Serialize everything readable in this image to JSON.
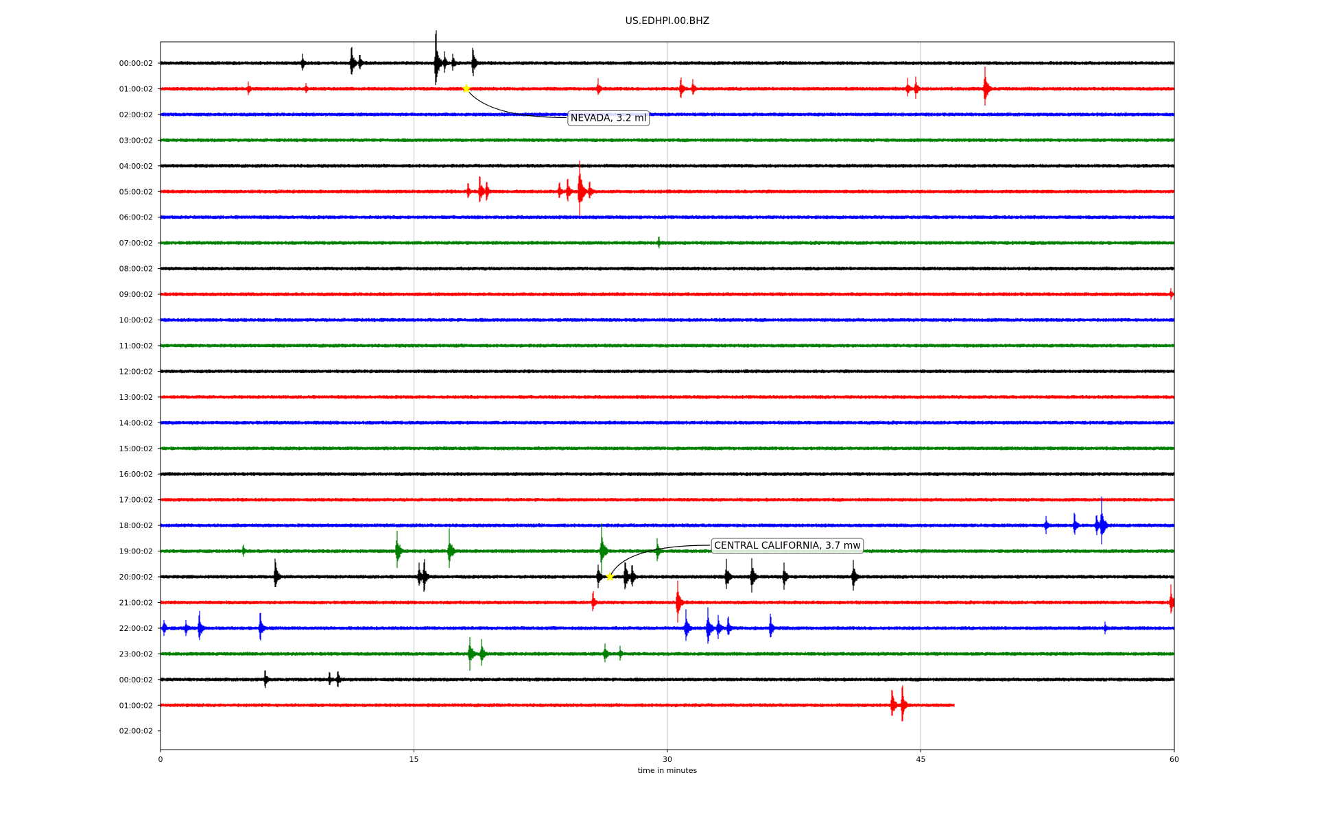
{
  "chart_data": {
    "type": "line",
    "title": "US.EDHPI.00.BHZ",
    "xlabel": "time in minutes",
    "ylabel": "",
    "xlim": [
      0,
      60
    ],
    "x_ticks": [
      "0",
      "15",
      "30",
      "45",
      "60"
    ],
    "grid": "vertical lines at 15, 30, 45 minutes",
    "trace_colors": [
      "#000000",
      "#ff0000",
      "#0000ff",
      "#008000"
    ],
    "rows": [
      {
        "label": "00:00:02",
        "end": 60,
        "events": [
          {
            "t": 8.4,
            "a": 0.3
          },
          {
            "t": 11.3,
            "a": 0.55
          },
          {
            "t": 11.8,
            "a": 0.3
          },
          {
            "t": 16.3,
            "a": 0.95
          },
          {
            "t": 16.8,
            "a": 0.35
          },
          {
            "t": 17.3,
            "a": 0.3
          },
          {
            "t": 18.5,
            "a": 0.5
          }
        ]
      },
      {
        "label": "01:00:02",
        "end": 60,
        "events": [
          {
            "t": 5.2,
            "a": 0.25
          },
          {
            "t": 8.6,
            "a": 0.2
          },
          {
            "t": 25.9,
            "a": 0.3
          },
          {
            "t": 30.8,
            "a": 0.35
          },
          {
            "t": 31.5,
            "a": 0.3
          },
          {
            "t": 44.2,
            "a": 0.3
          },
          {
            "t": 44.7,
            "a": 0.35
          },
          {
            "t": 48.8,
            "a": 0.7
          }
        ]
      },
      {
        "label": "02:00:02",
        "end": 60,
        "events": []
      },
      {
        "label": "03:00:02",
        "end": 60,
        "events": []
      },
      {
        "label": "04:00:02",
        "end": 60,
        "events": []
      },
      {
        "label": "05:00:02",
        "end": 60,
        "events": [
          {
            "t": 18.2,
            "a": 0.25
          },
          {
            "t": 18.9,
            "a": 0.5
          },
          {
            "t": 19.3,
            "a": 0.35
          },
          {
            "t": 23.6,
            "a": 0.3
          },
          {
            "t": 24.1,
            "a": 0.4
          },
          {
            "t": 24.8,
            "a": 1.0
          },
          {
            "t": 25.4,
            "a": 0.35
          }
        ]
      },
      {
        "label": "06:00:02",
        "end": 60,
        "events": []
      },
      {
        "label": "07:00:02",
        "end": 60,
        "events": [
          {
            "t": 29.5,
            "a": 0.2
          }
        ]
      },
      {
        "label": "08:00:02",
        "end": 60,
        "events": []
      },
      {
        "label": "09:00:02",
        "end": 60,
        "events": [
          {
            "t": 59.8,
            "a": 0.2
          }
        ]
      },
      {
        "label": "10:00:02",
        "end": 60,
        "events": []
      },
      {
        "label": "11:00:02",
        "end": 60,
        "events": []
      },
      {
        "label": "12:00:02",
        "end": 60,
        "events": []
      },
      {
        "label": "13:00:02",
        "end": 60,
        "events": []
      },
      {
        "label": "14:00:02",
        "end": 60,
        "events": []
      },
      {
        "label": "15:00:02",
        "end": 60,
        "events": []
      },
      {
        "label": "16:00:02",
        "end": 60,
        "events": []
      },
      {
        "label": "17:00:02",
        "end": 60,
        "events": []
      },
      {
        "label": "18:00:02",
        "end": 60,
        "events": [
          {
            "t": 52.4,
            "a": 0.3
          },
          {
            "t": 54.1,
            "a": 0.4
          },
          {
            "t": 55.4,
            "a": 0.35
          },
          {
            "t": 55.7,
            "a": 0.8
          }
        ]
      },
      {
        "label": "19:00:02",
        "end": 60,
        "events": [
          {
            "t": 4.9,
            "a": 0.2
          },
          {
            "t": 14.0,
            "a": 0.7
          },
          {
            "t": 17.1,
            "a": 0.65
          },
          {
            "t": 26.1,
            "a": 0.8
          },
          {
            "t": 29.4,
            "a": 0.4
          }
        ]
      },
      {
        "label": "20:00:02",
        "end": 60,
        "events": [
          {
            "t": 6.8,
            "a": 0.55
          },
          {
            "t": 15.3,
            "a": 0.4
          },
          {
            "t": 15.6,
            "a": 0.55
          },
          {
            "t": 25.9,
            "a": 0.4
          },
          {
            "t": 27.5,
            "a": 0.55
          },
          {
            "t": 27.9,
            "a": 0.4
          },
          {
            "t": 33.5,
            "a": 0.55
          },
          {
            "t": 35.0,
            "a": 0.6
          },
          {
            "t": 36.9,
            "a": 0.45
          },
          {
            "t": 41.0,
            "a": 0.55
          }
        ]
      },
      {
        "label": "21:00:02",
        "end": 60,
        "events": [
          {
            "t": 25.6,
            "a": 0.35
          },
          {
            "t": 30.6,
            "a": 0.7
          },
          {
            "t": 59.8,
            "a": 0.5
          }
        ]
      },
      {
        "label": "22:00:02",
        "end": 60,
        "events": [
          {
            "t": 0.2,
            "a": 0.3
          },
          {
            "t": 1.5,
            "a": 0.3
          },
          {
            "t": 2.3,
            "a": 0.5
          },
          {
            "t": 5.9,
            "a": 0.55
          },
          {
            "t": 31.1,
            "a": 0.6
          },
          {
            "t": 32.4,
            "a": 0.7
          },
          {
            "t": 33.0,
            "a": 0.45
          },
          {
            "t": 33.6,
            "a": 0.35
          },
          {
            "t": 36.1,
            "a": 0.45
          },
          {
            "t": 55.9,
            "a": 0.2
          }
        ]
      },
      {
        "label": "23:00:02",
        "end": 60,
        "events": [
          {
            "t": 18.3,
            "a": 0.6
          },
          {
            "t": 19.0,
            "a": 0.45
          },
          {
            "t": 26.3,
            "a": 0.35
          },
          {
            "t": 27.2,
            "a": 0.25
          }
        ]
      },
      {
        "label": "00:00:02",
        "end": 60,
        "events": [
          {
            "t": 6.2,
            "a": 0.3
          },
          {
            "t": 10.0,
            "a": 0.25
          },
          {
            "t": 10.5,
            "a": 0.3
          }
        ]
      },
      {
        "label": "01:00:02",
        "end": 47,
        "events": [
          {
            "t": 43.3,
            "a": 0.55
          },
          {
            "t": 43.9,
            "a": 0.6
          }
        ]
      },
      {
        "label": "02:00:02",
        "end": 0,
        "events": []
      }
    ],
    "annotations": [
      {
        "text": "NEVADA, 3.2 ml",
        "row": 1,
        "t": 18.1
      },
      {
        "text": "CENTRAL CALIFORNIA, 3.7 mw",
        "row": 20,
        "t": 26.6
      }
    ]
  }
}
